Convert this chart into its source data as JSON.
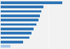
{
  "values": [
    26.0,
    18.0,
    17.2,
    16.5,
    16.0,
    15.0,
    14.0,
    13.0,
    12.0,
    9.5,
    4.0
  ],
  "bar_colors": [
    "#2e75b6",
    "#2e75b6",
    "#2e75b6",
    "#2e75b6",
    "#2e75b6",
    "#2e75b6",
    "#2e75b6",
    "#2e75b6",
    "#2e75b6",
    "#2e75b6",
    "#a8c8e8"
  ],
  "background_color": "#f2f2f2",
  "plot_bg_color": "#f2f2f2",
  "xlim": [
    0,
    29
  ],
  "grid_color": "#ffffff",
  "bar_height": 0.62
}
